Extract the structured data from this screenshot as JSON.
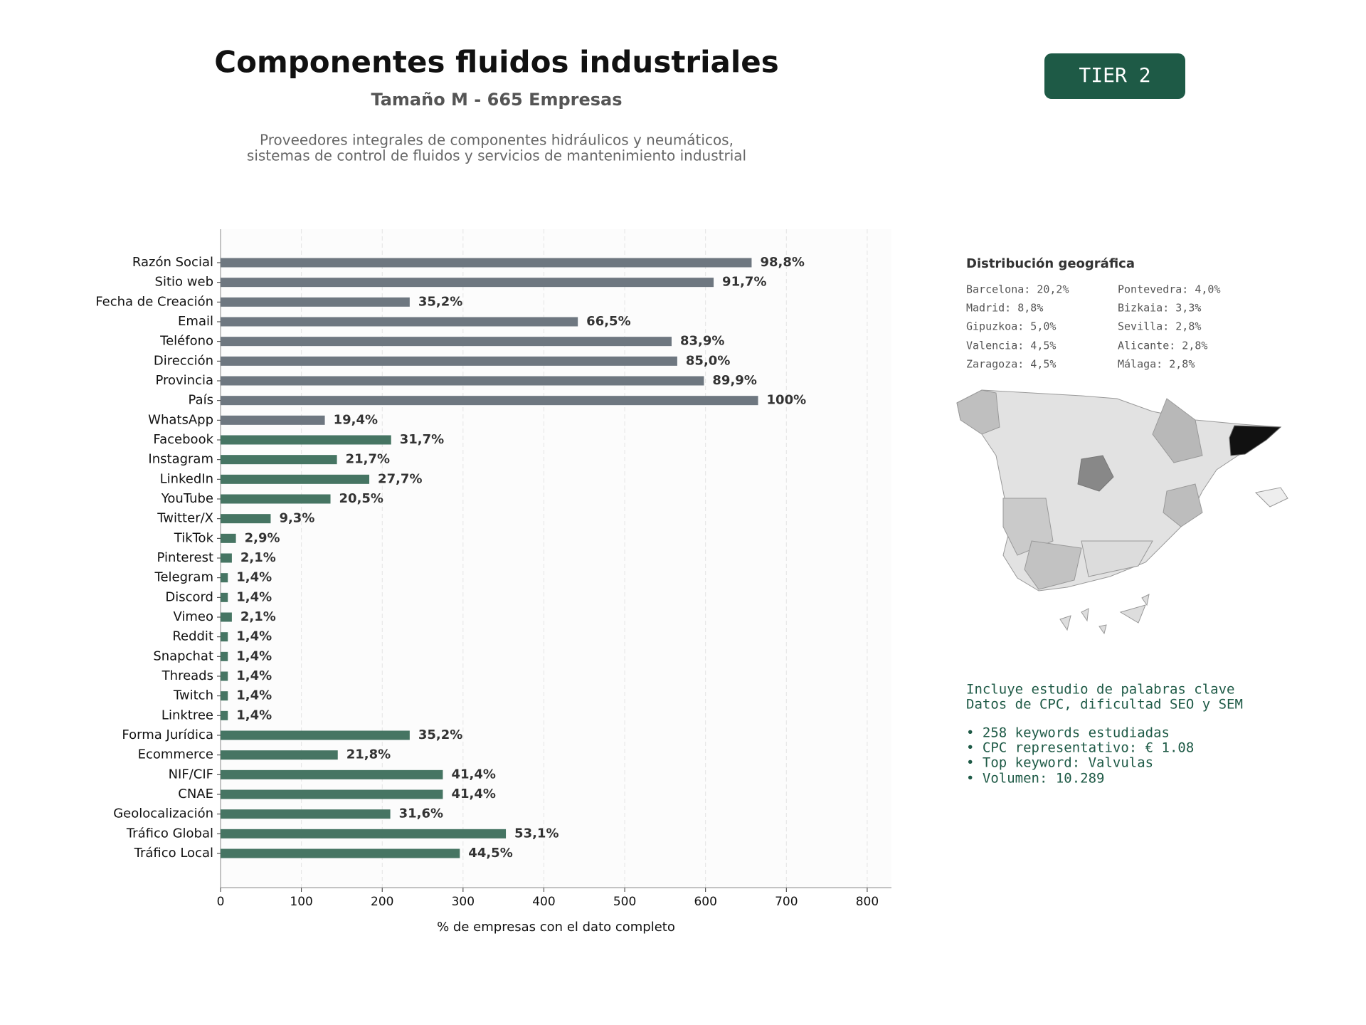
{
  "chart_data": {
    "type": "barh",
    "title": "Componentes fluidos industriales",
    "subtitle": "Tamaño M - 665 Empresas",
    "description": [
      "Proveedores integrales de componentes hidráulicos y neumáticos,",
      "sistemas de control de fluidos y servicios de mantenimiento industrial"
    ],
    "xlabel": "% de empresas con el dato completo",
    "categories": [
      "Razón Social",
      "Sitio web",
      "Fecha de Creación",
      "Email",
      "Teléfono",
      "Dirección",
      "Provincia",
      "País",
      "WhatsApp",
      "Facebook",
      "Instagram",
      "LinkedIn",
      "YouTube",
      "Twitter/X",
      "TikTok",
      "Pinterest",
      "Telegram",
      "Discord",
      "Vimeo",
      "Reddit",
      "Snapchat",
      "Threads",
      "Twitch",
      "Linktree",
      "Forma Jurídica",
      "Ecommerce",
      "NIF/CIF",
      "CNAE",
      "Geolocalización",
      "Tráfico Global",
      "Tráfico Local"
    ],
    "values": [
      657,
      610,
      234,
      442,
      558,
      565,
      598,
      665,
      129,
      211,
      144,
      184,
      136,
      62,
      19,
      14,
      9,
      9,
      14,
      9,
      9,
      9,
      9,
      9,
      234,
      145,
      275,
      275,
      210,
      353,
      296
    ],
    "value_labels": [
      "98,8%",
      "91,7%",
      "35,2%",
      "66,5%",
      "83,9%",
      "85,0%",
      "89,9%",
      "100%",
      "19,4%",
      "31,7%",
      "21,7%",
      "27,7%",
      "20,5%",
      "9,3%",
      "2,9%",
      "2,1%",
      "1,4%",
      "1,4%",
      "2,1%",
      "1,4%",
      "1,4%",
      "1,4%",
      "1,4%",
      "1,4%",
      "35,2%",
      "21,8%",
      "41,4%",
      "41,4%",
      "31,6%",
      "53,1%",
      "44,5%"
    ],
    "colors": [
      "#6e7780",
      "#6e7780",
      "#6e7780",
      "#6e7780",
      "#6e7780",
      "#6e7780",
      "#6e7780",
      "#6e7780",
      "#6e7780",
      "#467563",
      "#467563",
      "#467563",
      "#467563",
      "#467563",
      "#467563",
      "#467563",
      "#467563",
      "#467563",
      "#467563",
      "#467563",
      "#467563",
      "#467563",
      "#467563",
      "#467563",
      "#467563",
      "#467563",
      "#467563",
      "#467563",
      "#467563",
      "#467563",
      "#467563"
    ],
    "xlim": [
      0,
      830
    ],
    "xticks": [
      0,
      100,
      200,
      300,
      400,
      500,
      600,
      700,
      800
    ],
    "grid": true
  },
  "badge": "TIER 2",
  "geo": {
    "title": "Distribución geográfica",
    "items": [
      "Barcelona: 20,2%",
      "Pontevedra: 4,0%",
      "Madrid: 8,8%",
      "Bizkaia: 3,3%",
      "Gipuzkoa: 5,0%",
      "Sevilla: 2,8%",
      "Valencia: 4,5%",
      "Alicante: 2,8%",
      "Zaragoza: 4,5%",
      "Málaga: 2,8%"
    ]
  },
  "keywords": {
    "lines": [
      "Incluye estudio de palabras clave",
      "Datos de CPC, dificultad SEO y SEM",
      "• 258 keywords estudiadas",
      "• CPC representativo: € 1.08",
      "• Top keyword: Valvulas",
      "• Volumen: 10.289"
    ]
  }
}
